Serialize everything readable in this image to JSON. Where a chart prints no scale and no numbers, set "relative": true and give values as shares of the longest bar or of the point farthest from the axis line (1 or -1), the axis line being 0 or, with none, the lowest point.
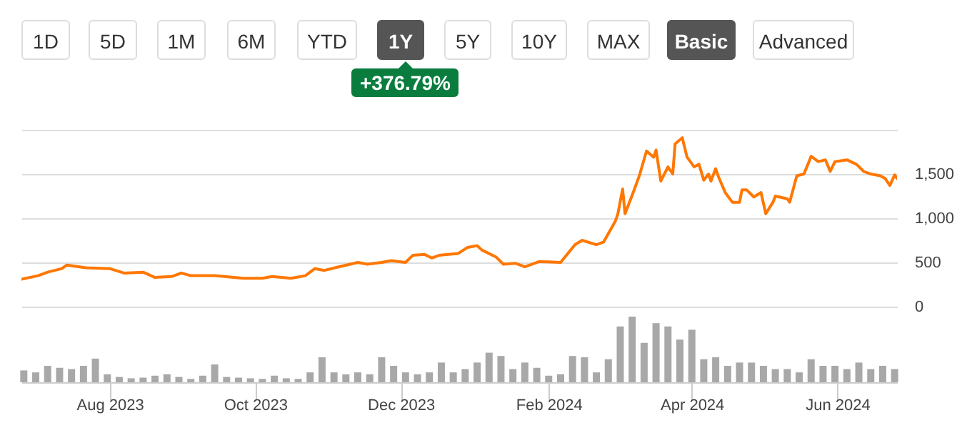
{
  "chart_data": [
    {
      "type": "line",
      "annotations": [
        "1D",
        "5D",
        "1M",
        "6M",
        "YTD",
        "1Y",
        "5Y",
        "10Y",
        "MAX",
        "Basic",
        "Advanced",
        "+376.79%"
      ],
      "x": [
        "2023-06-25",
        "2023-07-02",
        "2023-07-06",
        "2023-07-12",
        "2023-07-14",
        "2023-07-22",
        "2023-08-01",
        "2023-08-07",
        "2023-08-15",
        "2023-08-20",
        "2023-08-27",
        "2023-08-31",
        "2023-09-04",
        "2023-09-14",
        "2023-09-26",
        "2023-10-04",
        "2023-10-08",
        "2023-10-16",
        "2023-10-22",
        "2023-10-26",
        "2023-10-30",
        "2023-11-05",
        "2023-11-13",
        "2023-11-17",
        "2023-11-23",
        "2023-11-27",
        "2023-12-03",
        "2023-12-06",
        "2023-12-11",
        "2023-12-14",
        "2023-12-17",
        "2023-12-25",
        "2023-12-29",
        "2024-01-02",
        "2024-01-04",
        "2024-01-10",
        "2024-01-13",
        "2024-01-18",
        "2024-01-22",
        "2024-01-28",
        "2024-02-06",
        "2024-02-12",
        "2024-02-15",
        "2024-02-21",
        "2024-02-24",
        "2024-02-29",
        "2024-03-01",
        "2024-03-03",
        "2024-03-04",
        "2024-03-07",
        "2024-03-10",
        "2024-03-13",
        "2024-03-16",
        "2024-03-17",
        "2024-03-19",
        "2024-03-22",
        "2024-03-24",
        "2024-03-25",
        "2024-03-28",
        "2024-03-30",
        "2024-04-02",
        "2024-04-04",
        "2024-04-06",
        "2024-04-08",
        "2024-04-09",
        "2024-04-11",
        "2024-04-12",
        "2024-04-15",
        "2024-04-18",
        "2024-04-21",
        "2024-04-22",
        "2024-04-24",
        "2024-04-27",
        "2024-04-30",
        "2024-05-02",
        "2024-05-05",
        "2024-05-06",
        "2024-05-11",
        "2024-05-12",
        "2024-05-15",
        "2024-05-18",
        "2024-05-21",
        "2024-05-24",
        "2024-05-27",
        "2024-05-29",
        "2024-05-31",
        "2024-06-05",
        "2024-06-09",
        "2024-06-12",
        "2024-06-15",
        "2024-06-19",
        "2024-06-21",
        "2024-06-23",
        "2024-06-25",
        "2024-06-26"
      ],
      "series": [
        {
          "color": "#ff7700",
          "values": [
            310,
            350,
            390,
            430,
            470,
            440,
            430,
            380,
            390,
            330,
            340,
            380,
            350,
            350,
            320,
            320,
            340,
            320,
            350,
            430,
            410,
            450,
            500,
            480,
            500,
            520,
            500,
            580,
            590,
            550,
            580,
            600,
            670,
            690,
            640,
            560,
            480,
            490,
            450,
            510,
            500,
            700,
            750,
            700,
            730,
            970,
            1050,
            1330,
            1050,
            1260,
            1480,
            1760,
            1690,
            1770,
            1420,
            1580,
            1500,
            1840,
            1910,
            1690,
            1580,
            1610,
            1430,
            1500,
            1420,
            1560,
            1480,
            1290,
            1180,
            1180,
            1320,
            1320,
            1240,
            1290,
            1050,
            1180,
            1250,
            1220,
            1180,
            1480,
            1500,
            1700,
            1640,
            1660,
            1530,
            1640,
            1660,
            1610,
            1530,
            1500,
            1480,
            1450,
            1370,
            1490,
            1450
          ]
        }
      ],
      "xlim": [
        "2023-06-25",
        "2024-06-26"
      ],
      "ylim": [
        0,
        2000
      ],
      "yticks": [
        0,
        {
          "value": 500,
          "label": "500"
        },
        {
          "value": 1000,
          "label": "1,000"
        },
        {
          "value": 1500,
          "label": "1,500"
        },
        {
          "value": 2000,
          "label": null
        }
      ],
      "grid": "y",
      "tick_labels": "y"
    },
    {
      "type": "bar",
      "relative": true,
      "x": [
        "2023-06-26",
        "2023-07-01",
        "2023-07-06",
        "2023-07-11",
        "2023-07-16",
        "2023-07-21",
        "2023-07-26",
        "2023-07-31",
        "2023-08-05",
        "2023-08-10",
        "2023-08-15",
        "2023-08-20",
        "2023-08-25",
        "2023-08-30",
        "2023-09-04",
        "2023-09-09",
        "2023-09-14",
        "2023-09-19",
        "2023-09-24",
        "2023-09-29",
        "2023-10-04",
        "2023-10-09",
        "2023-10-14",
        "2023-10-19",
        "2023-10-24",
        "2023-10-29",
        "2023-11-03",
        "2023-11-08",
        "2023-11-13",
        "2023-11-18",
        "2023-11-23",
        "2023-11-28",
        "2023-12-03",
        "2023-12-08",
        "2023-12-13",
        "2023-12-18",
        "2023-12-23",
        "2023-12-28",
        "2024-01-02",
        "2024-01-07",
        "2024-01-12",
        "2024-01-17",
        "2024-01-22",
        "2024-01-27",
        "2024-02-01",
        "2024-02-06",
        "2024-02-11",
        "2024-02-16",
        "2024-02-21",
        "2024-02-26",
        "2024-03-02",
        "2024-03-07",
        "2024-03-12",
        "2024-03-17",
        "2024-03-22",
        "2024-03-27",
        "2024-04-01",
        "2024-04-06",
        "2024-04-11",
        "2024-04-16",
        "2024-04-21",
        "2024-04-26",
        "2024-05-01",
        "2024-05-06",
        "2024-05-11",
        "2024-05-16",
        "2024-05-21",
        "2024-05-26",
        "2024-05-31",
        "2024-06-05",
        "2024-06-10",
        "2024-06-15",
        "2024-06-20",
        "2024-06-25"
      ],
      "series": [
        {
          "color": "#a8a8a8",
          "values": [
            0.18,
            0.15,
            0.25,
            0.22,
            0.2,
            0.25,
            0.36,
            0.12,
            0.08,
            0.06,
            0.07,
            0.1,
            0.12,
            0.08,
            0.05,
            0.1,
            0.27,
            0.08,
            0.07,
            0.06,
            0.05,
            0.1,
            0.06,
            0.05,
            0.15,
            0.38,
            0.15,
            0.12,
            0.15,
            0.12,
            0.38,
            0.25,
            0.15,
            0.12,
            0.15,
            0.3,
            0.15,
            0.2,
            0.3,
            0.45,
            0.4,
            0.2,
            0.3,
            0.22,
            0.1,
            0.12,
            0.4,
            0.38,
            0.15,
            0.35,
            0.85,
            1,
            0.6,
            0.9,
            0.85,
            0.65,
            0.8,
            0.35,
            0.38,
            0.25,
            0.3,
            0.3,
            0.25,
            0.2,
            0.2,
            0.15,
            0.35,
            0.25,
            0.25,
            0.2,
            0.3,
            0.2,
            0.25,
            0.2
          ]
        }
      ],
      "xlim": [
        "2023-06-25",
        "2024-06-26"
      ],
      "xticks": [
        {
          "value": "2023-08-01",
          "label": "Aug 2023"
        },
        {
          "value": "2023-10-01",
          "label": "Oct 2023"
        },
        {
          "value": "2023-12-01",
          "label": "Dec 2023"
        },
        {
          "value": "2024-02-01",
          "label": "Feb 2024"
        },
        {
          "value": "2024-04-01",
          "label": "Apr 2024"
        },
        {
          "value": "2024-06-01",
          "label": "Jun 2024"
        }
      ],
      "tick_labels": "x"
    }
  ]
}
